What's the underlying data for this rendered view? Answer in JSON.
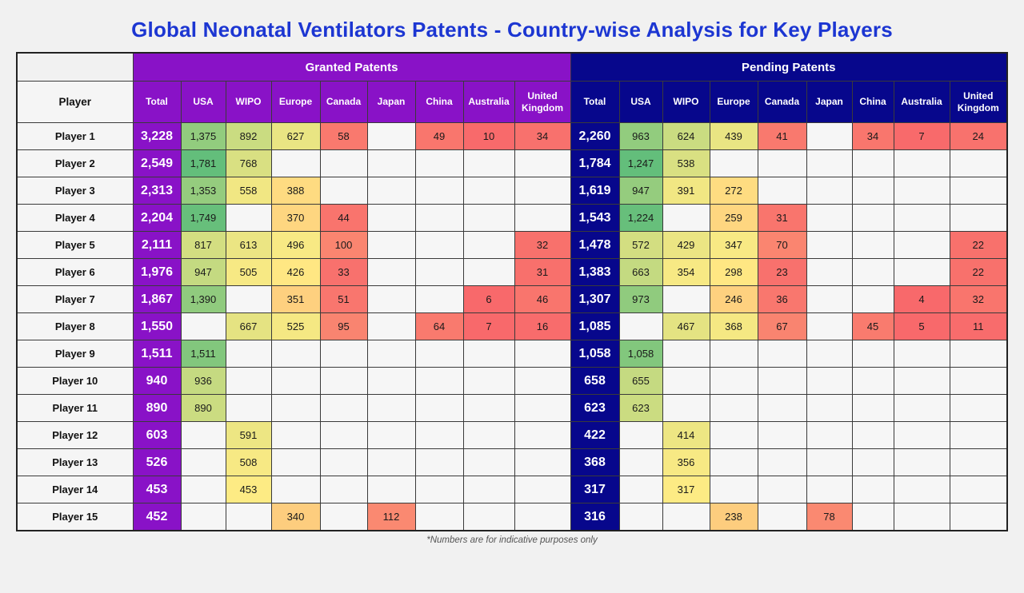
{
  "footnote": "*Numbers are for indicative purposes only",
  "colors": {
    "page_bg": "#f1f1f1",
    "title": "#1c36d2",
    "granted_header": "#8912c7",
    "pending_header": "#07078c",
    "scale_low": "#F8696B",
    "scale_mid": "#FFEB84",
    "scale_high": "#63BE7B",
    "empty_cell": "#f6f6f6"
  },
  "chart_data": {
    "type": "heatmap_table",
    "title": "Global Neonatal Ventilators Patents - Country-wise Analysis for Key Players",
    "row_header": "Player",
    "row_labels": [
      "Player 1",
      "Player 2",
      "Player 3",
      "Player 4",
      "Player 5",
      "Player 6",
      "Player 7",
      "Player 8",
      "Player 9",
      "Player 10",
      "Player 11",
      "Player 12",
      "Player 13",
      "Player 14",
      "Player 15"
    ],
    "columns": [
      "Total",
      "USA",
      "WIPO",
      "Europe",
      "Canada",
      "Japan",
      "China",
      "Australia",
      "United Kingdom"
    ],
    "sections": [
      {
        "name": "Granted Patents",
        "color_scale": {
          "min": 6,
          "mid": 440,
          "max": 1781
        },
        "rows": [
          [
            3228,
            1375,
            892,
            627,
            58,
            null,
            49,
            10,
            34
          ],
          [
            2549,
            1781,
            768,
            null,
            null,
            null,
            null,
            null,
            null
          ],
          [
            2313,
            1353,
            558,
            388,
            null,
            null,
            null,
            null,
            null
          ],
          [
            2204,
            1749,
            null,
            370,
            44,
            null,
            null,
            null,
            null
          ],
          [
            2111,
            817,
            613,
            496,
            100,
            null,
            null,
            null,
            32
          ],
          [
            1976,
            947,
            505,
            426,
            33,
            null,
            null,
            null,
            31
          ],
          [
            1867,
            1390,
            null,
            351,
            51,
            null,
            null,
            6,
            46
          ],
          [
            1550,
            null,
            667,
            525,
            95,
            null,
            64,
            7,
            16
          ],
          [
            1511,
            1511,
            null,
            null,
            null,
            null,
            null,
            null,
            null
          ],
          [
            940,
            936,
            null,
            null,
            null,
            null,
            null,
            null,
            null
          ],
          [
            890,
            890,
            null,
            null,
            null,
            null,
            null,
            null,
            null
          ],
          [
            603,
            null,
            591,
            null,
            null,
            null,
            null,
            null,
            null
          ],
          [
            526,
            null,
            508,
            null,
            null,
            null,
            null,
            null,
            null
          ],
          [
            453,
            null,
            453,
            null,
            null,
            null,
            null,
            null,
            null
          ],
          [
            452,
            null,
            null,
            340,
            null,
            112,
            null,
            null,
            null
          ]
        ]
      },
      {
        "name": "Pending Patents",
        "color_scale": {
          "min": 4,
          "mid": 307,
          "max": 1247
        },
        "rows": [
          [
            2260,
            963,
            624,
            439,
            41,
            null,
            34,
            7,
            24
          ],
          [
            1784,
            1247,
            538,
            null,
            null,
            null,
            null,
            null,
            null
          ],
          [
            1619,
            947,
            391,
            272,
            null,
            null,
            null,
            null,
            null
          ],
          [
            1543,
            1224,
            null,
            259,
            31,
            null,
            null,
            null,
            null
          ],
          [
            1478,
            572,
            429,
            347,
            70,
            null,
            null,
            null,
            22
          ],
          [
            1383,
            663,
            354,
            298,
            23,
            null,
            null,
            null,
            22
          ],
          [
            1307,
            973,
            null,
            246,
            36,
            null,
            null,
            4,
            32
          ],
          [
            1085,
            null,
            467,
            368,
            67,
            null,
            45,
            5,
            11
          ],
          [
            1058,
            1058,
            null,
            null,
            null,
            null,
            null,
            null,
            null
          ],
          [
            658,
            655,
            null,
            null,
            null,
            null,
            null,
            null,
            null
          ],
          [
            623,
            623,
            null,
            null,
            null,
            null,
            null,
            null,
            null
          ],
          [
            422,
            null,
            414,
            null,
            null,
            null,
            null,
            null,
            null
          ],
          [
            368,
            null,
            356,
            null,
            null,
            null,
            null,
            null,
            null
          ],
          [
            317,
            null,
            317,
            null,
            null,
            null,
            null,
            null,
            null
          ],
          [
            316,
            null,
            null,
            238,
            null,
            78,
            null,
            null,
            null
          ]
        ]
      }
    ]
  }
}
